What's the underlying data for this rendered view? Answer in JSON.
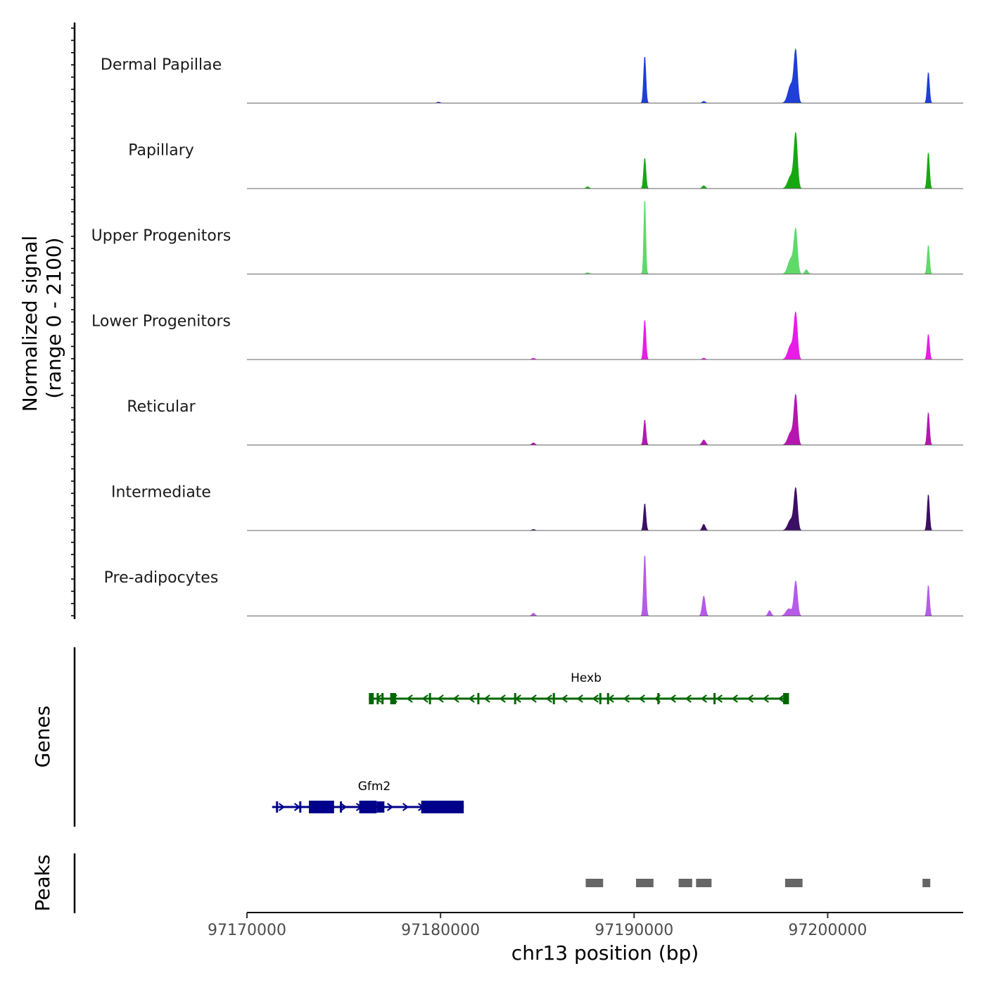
{
  "chart_data": {
    "type": "area",
    "title": "",
    "ylabel_line1": "Normalized signal",
    "ylabel_line2": "(range 0 - 2100)",
    "ylim": [
      0,
      2100
    ],
    "xlabel": "chr13 position (bp)",
    "xlim": [
      97170000,
      97207000
    ],
    "xticks": [
      97170000,
      97180000,
      97190000,
      97200000
    ],
    "xtick_labels": [
      "97170000",
      "97180000",
      "97190000",
      "97200000"
    ],
    "series": [
      {
        "name": "Dermal Papillae",
        "color": "#1f3fd8",
        "peaks": [
          {
            "x": 97190550,
            "y": 1300,
            "w": 60
          },
          {
            "x": 97198100,
            "y": 500,
            "w": 150
          },
          {
            "x": 97198350,
            "y": 1350,
            "w": 90
          },
          {
            "x": 97205200,
            "y": 850,
            "w": 60
          },
          {
            "x": 97193600,
            "y": 50,
            "w": 80
          },
          {
            "x": 97179900,
            "y": 30,
            "w": 80
          }
        ]
      },
      {
        "name": "Papillary",
        "color": "#17a811",
        "peaks": [
          {
            "x": 97190550,
            "y": 850,
            "w": 60
          },
          {
            "x": 97198100,
            "y": 350,
            "w": 150
          },
          {
            "x": 97198350,
            "y": 1450,
            "w": 90
          },
          {
            "x": 97205200,
            "y": 1000,
            "w": 60
          },
          {
            "x": 97193600,
            "y": 80,
            "w": 80
          },
          {
            "x": 97187600,
            "y": 50,
            "w": 80
          }
        ]
      },
      {
        "name": "Upper Progenitors",
        "color": "#5fd96a",
        "peaks": [
          {
            "x": 97190550,
            "y": 2100,
            "w": 50
          },
          {
            "x": 97198100,
            "y": 420,
            "w": 150
          },
          {
            "x": 97198350,
            "y": 1150,
            "w": 90
          },
          {
            "x": 97198900,
            "y": 120,
            "w": 80
          },
          {
            "x": 97205200,
            "y": 800,
            "w": 60
          },
          {
            "x": 97187600,
            "y": 40,
            "w": 80
          }
        ]
      },
      {
        "name": "Lower Progenitors",
        "color": "#e81ce6",
        "peaks": [
          {
            "x": 97190550,
            "y": 1100,
            "w": 60
          },
          {
            "x": 97198100,
            "y": 400,
            "w": 150
          },
          {
            "x": 97198350,
            "y": 1200,
            "w": 90
          },
          {
            "x": 97205200,
            "y": 700,
            "w": 60
          },
          {
            "x": 97193600,
            "y": 40,
            "w": 80
          },
          {
            "x": 97184800,
            "y": 40,
            "w": 80
          }
        ]
      },
      {
        "name": "Reticular",
        "color": "#b516b0",
        "peaks": [
          {
            "x": 97190550,
            "y": 700,
            "w": 60
          },
          {
            "x": 97198100,
            "y": 350,
            "w": 150
          },
          {
            "x": 97198350,
            "y": 1300,
            "w": 90
          },
          {
            "x": 97205200,
            "y": 900,
            "w": 60
          },
          {
            "x": 97193600,
            "y": 140,
            "w": 90
          },
          {
            "x": 97184800,
            "y": 60,
            "w": 80
          }
        ]
      },
      {
        "name": "Intermediate",
        "color": "#3b0f63",
        "peaks": [
          {
            "x": 97190550,
            "y": 750,
            "w": 60
          },
          {
            "x": 97198100,
            "y": 300,
            "w": 150
          },
          {
            "x": 97198350,
            "y": 1100,
            "w": 90
          },
          {
            "x": 97205200,
            "y": 1000,
            "w": 60
          },
          {
            "x": 97193600,
            "y": 170,
            "w": 80
          },
          {
            "x": 97184800,
            "y": 30,
            "w": 80
          }
        ]
      },
      {
        "name": "Pre-adipocytes",
        "color": "#b55be8",
        "peaks": [
          {
            "x": 97190550,
            "y": 1700,
            "w": 60
          },
          {
            "x": 97193600,
            "y": 550,
            "w": 80
          },
          {
            "x": 97197000,
            "y": 150,
            "w": 80
          },
          {
            "x": 97198000,
            "y": 200,
            "w": 150
          },
          {
            "x": 97198350,
            "y": 950,
            "w": 90
          },
          {
            "x": 97205200,
            "y": 850,
            "w": 60
          },
          {
            "x": 97184800,
            "y": 80,
            "w": 80
          }
        ]
      }
    ],
    "genes_track_label": "Genes",
    "genes": [
      {
        "name": "Hexb",
        "strand": "-",
        "start": 97176300,
        "end": 97198000,
        "color": "#006600",
        "exons": [
          [
            97176300,
            97176550
          ],
          [
            97176700,
            97176800
          ],
          [
            97176950,
            97177050
          ],
          [
            97177400,
            97177700
          ],
          [
            97179400,
            97179450
          ],
          [
            97181900,
            97182000
          ],
          [
            97183800,
            97183900
          ],
          [
            97185800,
            97185850
          ],
          [
            97188200,
            97188300
          ],
          [
            97188600,
            97188650
          ],
          [
            97191200,
            97191250
          ],
          [
            97194100,
            97194200
          ],
          [
            97197700,
            97198000
          ]
        ]
      },
      {
        "name": "Gfm2",
        "strand": "+",
        "start": 97171300,
        "end": 97181200,
        "color": "#00008b",
        "exons": [
          [
            97171500,
            97171600
          ],
          [
            97172700,
            97172800
          ],
          [
            97173200,
            97174500
          ],
          [
            97174800,
            97174900
          ],
          [
            97175800,
            97176700
          ],
          [
            97176700,
            97177100
          ],
          [
            97179000,
            97181200
          ]
        ]
      }
    ],
    "peaks_track_label": "Peaks",
    "peaks_color": "#666666",
    "peaks": [
      [
        97187500,
        97188400
      ],
      [
        97190100,
        97191000
      ],
      [
        97192300,
        97193000
      ],
      [
        97193200,
        97194000
      ],
      [
        97197800,
        97198700
      ],
      [
        97204900,
        97205300
      ]
    ]
  }
}
